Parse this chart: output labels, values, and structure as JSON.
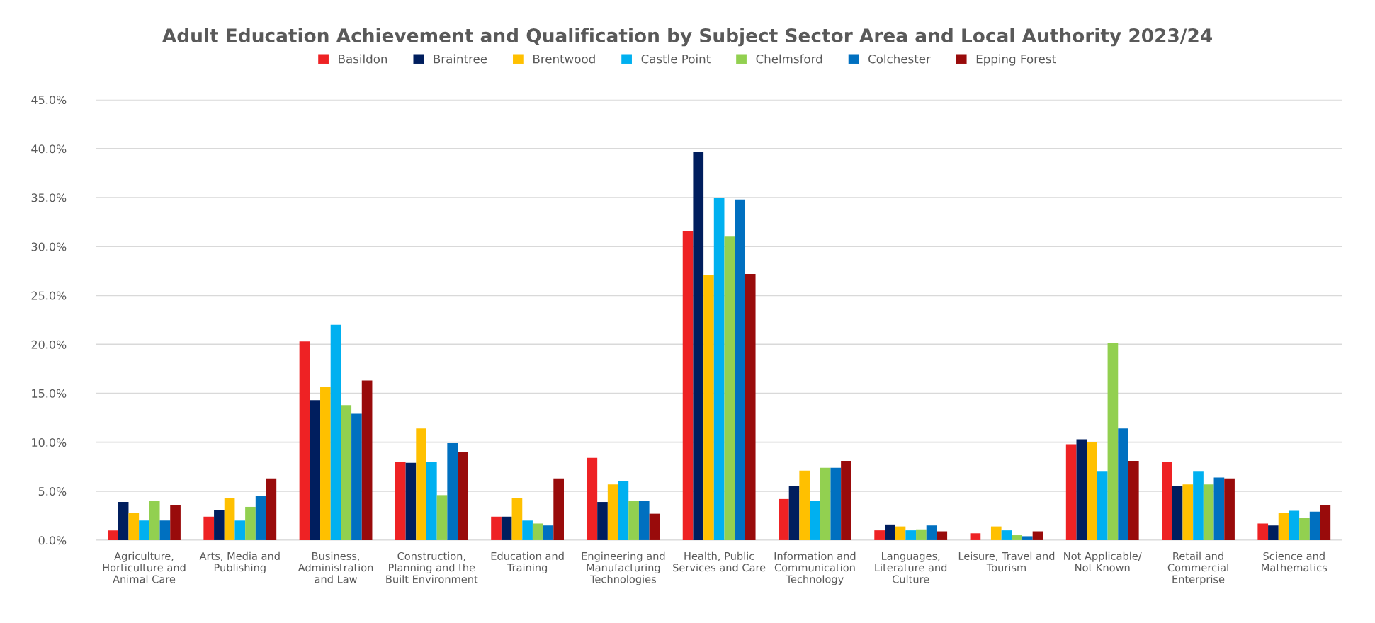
{
  "chart_data": {
    "type": "bar",
    "title": "Adult Education Achievement and Qualification by Subject Sector Area and Local Authority 2023/24",
    "categories": [
      "Agriculture,\nHorticulture and\nAnimal Care",
      "Arts, Media and\nPublishing",
      "Business,\nAdministration\nand Law",
      "Construction,\nPlanning and the\nBuilt Environment",
      "Education and\nTraining",
      "Engineering and\nManufacturing\nTechnologies",
      "Health, Public\nServices and Care",
      "Information and\nCommunication\nTechnology",
      "Languages,\nLiterature and\nCulture",
      "Leisure, Travel and\nTourism",
      "Not Applicable/\nNot Known",
      "Retail and\nCommercial\nEnterprise",
      "Science and\nMathematics"
    ],
    "series": [
      {
        "name": "Basildon",
        "color": "#ee2224",
        "values": [
          1.0,
          2.4,
          20.3,
          8.0,
          2.4,
          8.4,
          31.6,
          4.2,
          1.0,
          0.7,
          9.8,
          8.0,
          1.7
        ]
      },
      {
        "name": "Braintree",
        "color": "#001e5e",
        "values": [
          3.9,
          3.1,
          14.3,
          7.9,
          2.4,
          3.9,
          39.7,
          5.5,
          1.6,
          0,
          10.3,
          5.5,
          1.5
        ]
      },
      {
        "name": "Brentwood",
        "color": "#ffc000",
        "values": [
          2.8,
          4.3,
          15.7,
          11.4,
          4.3,
          5.7,
          27.1,
          7.1,
          1.4,
          1.4,
          10.0,
          5.7,
          2.8
        ]
      },
      {
        "name": "Castle Point",
        "color": "#00b0f0",
        "values": [
          2.0,
          2.0,
          22.0,
          8.0,
          2.0,
          6.0,
          35.0,
          4.0,
          1.0,
          1.0,
          7.0,
          7.0,
          3.0
        ]
      },
      {
        "name": "Chelmsford",
        "color": "#92d050",
        "values": [
          4.0,
          3.4,
          13.8,
          4.6,
          1.7,
          4.0,
          31.0,
          7.4,
          1.1,
          0.5,
          20.1,
          5.7,
          2.3
        ]
      },
      {
        "name": "Colchester",
        "color": "#0070c0",
        "values": [
          2.0,
          4.5,
          12.9,
          9.9,
          1.5,
          4.0,
          34.8,
          7.4,
          1.5,
          0.4,
          11.4,
          6.4,
          2.9
        ]
      },
      {
        "name": "Epping Forest",
        "color": "#990b0b",
        "values": [
          3.6,
          6.3,
          16.3,
          9.0,
          6.3,
          2.7,
          27.2,
          8.1,
          0.9,
          0.9,
          8.1,
          6.3,
          3.6
        ]
      }
    ],
    "ylim": [
      0,
      45
    ],
    "yticks": [
      {
        "value": 0,
        "label": "0.0%"
      },
      {
        "value": 5,
        "label": "5.0%"
      },
      {
        "value": 10,
        "label": "10.0%"
      },
      {
        "value": 15,
        "label": "15.0%"
      },
      {
        "value": 20,
        "label": "20.0%"
      },
      {
        "value": 25,
        "label": "25.0%"
      },
      {
        "value": 30,
        "label": "30.0%"
      },
      {
        "value": 35,
        "label": "35.0%"
      },
      {
        "value": 40,
        "label": "40.0%"
      },
      {
        "value": 45,
        "label": "45.0%"
      }
    ],
    "grid": "y",
    "legend": "top"
  }
}
